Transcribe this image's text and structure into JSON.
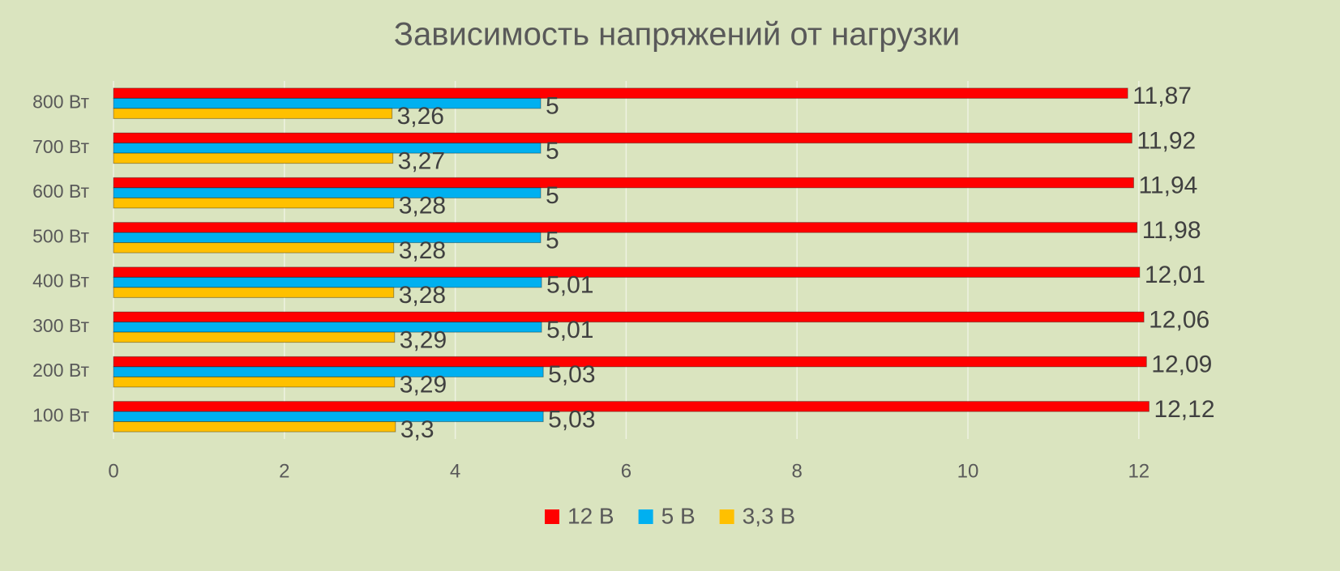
{
  "chart_data": {
    "type": "hbar",
    "title": "Зависимость напряжений от нагрузки",
    "categories": [
      "100 Вт",
      "200 Вт",
      "300 Вт",
      "400 Вт",
      "500 Вт",
      "600 Вт",
      "700 Вт",
      "800 Вт"
    ],
    "series": [
      {
        "name": "12 В",
        "color": "#ff0000",
        "values": [
          12.12,
          12.09,
          12.06,
          12.01,
          11.98,
          11.94,
          11.92,
          11.87
        ],
        "value_labels": [
          "12,12",
          "12,09",
          "12,06",
          "12,01",
          "11,98",
          "11,94",
          "11,92",
          "11,87"
        ]
      },
      {
        "name": "5 В",
        "color": "#00b0f0",
        "values": [
          5.03,
          5.03,
          5.01,
          5.01,
          5,
          5,
          5,
          5
        ],
        "value_labels": [
          "5,03",
          "5,03",
          "5,01",
          "5,01",
          "5",
          "5",
          "5",
          "5"
        ]
      },
      {
        "name": "3,3 В",
        "color": "#ffc000",
        "values": [
          3.3,
          3.29,
          3.29,
          3.28,
          3.28,
          3.28,
          3.27,
          3.26
        ],
        "value_labels": [
          "3,3",
          "3,29",
          "3,29",
          "3,28",
          "3,28",
          "3,28",
          "3,27",
          "3,26"
        ]
      }
    ],
    "xlim": [
      0,
      12.5
    ],
    "xticks": [
      0,
      2,
      4,
      6,
      8,
      10,
      12
    ],
    "grid": true,
    "legend": "bottom"
  }
}
